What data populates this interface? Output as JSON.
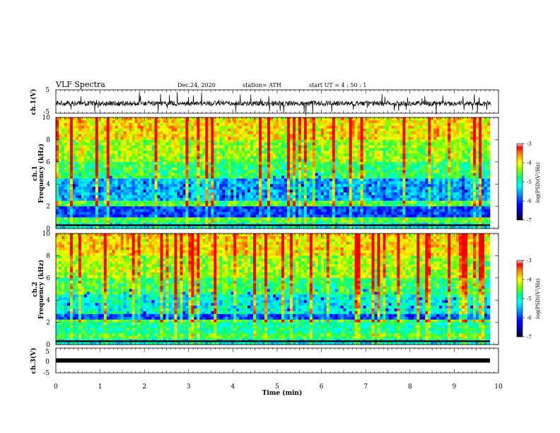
{
  "header": {
    "title": "VLF Spectra",
    "date": "Dec.24, 2020",
    "station": "station= ATH",
    "start_ut": "start  UT =   4 : 50 : 1"
  },
  "chart_data": [
    {
      "type": "line",
      "name": "waveform-ch1",
      "ylabel": "ch.1(V)",
      "ylim": [
        -5,
        5
      ],
      "yticks": [
        "5",
        "-5"
      ],
      "xlim": [
        0,
        10
      ]
    },
    {
      "type": "heatmap",
      "name": "spectrogram-ch1",
      "ylabel_top": "ch.1",
      "ylabel": "Frequency (kHz)",
      "ylim": [
        0,
        10
      ],
      "yticks": [
        "0",
        "2",
        "4",
        "6",
        "8",
        "10"
      ],
      "xlim": [
        0,
        9.83
      ],
      "colorbar": {
        "label": "log(PSD)(V²/Hz)",
        "range": [
          -7,
          -3
        ],
        "ticks": [
          "-3",
          "-4",
          "-5",
          "-6",
          "-7"
        ]
      }
    },
    {
      "type": "heatmap",
      "name": "spectrogram-ch2",
      "ylabel_top": "ch.2",
      "ylabel": "Frequency (kHz)",
      "ylim": [
        0,
        10
      ],
      "yticks": [
        "0",
        "2",
        "4",
        "6",
        "8",
        "10"
      ],
      "xlim": [
        0,
        9.83
      ],
      "colorbar": {
        "label": "log(PSD)(V²/Hz)",
        "range": [
          -7,
          -3
        ],
        "ticks": [
          "-3",
          "-4",
          "-5",
          "-6",
          "-7"
        ]
      }
    },
    {
      "type": "line",
      "name": "waveform-ch3",
      "ylabel": "ch.3(V)",
      "ylim": [
        -5,
        5
      ],
      "yticks": [
        "5",
        "0",
        "-5"
      ],
      "xlim": [
        0,
        10
      ],
      "value": 0
    }
  ],
  "x_axis": {
    "label": "Time (min)",
    "ticks": [
      "0",
      "1",
      "2",
      "3",
      "4",
      "5",
      "6",
      "7",
      "8",
      "9",
      "10"
    ],
    "range": [
      0,
      10
    ]
  },
  "colors": {
    "colormap": [
      "#000080",
      "#0000ff",
      "#00a0ff",
      "#00ffff",
      "#00ff80",
      "#80ff00",
      "#ffff00",
      "#ff8000",
      "#ff0000"
    ]
  }
}
